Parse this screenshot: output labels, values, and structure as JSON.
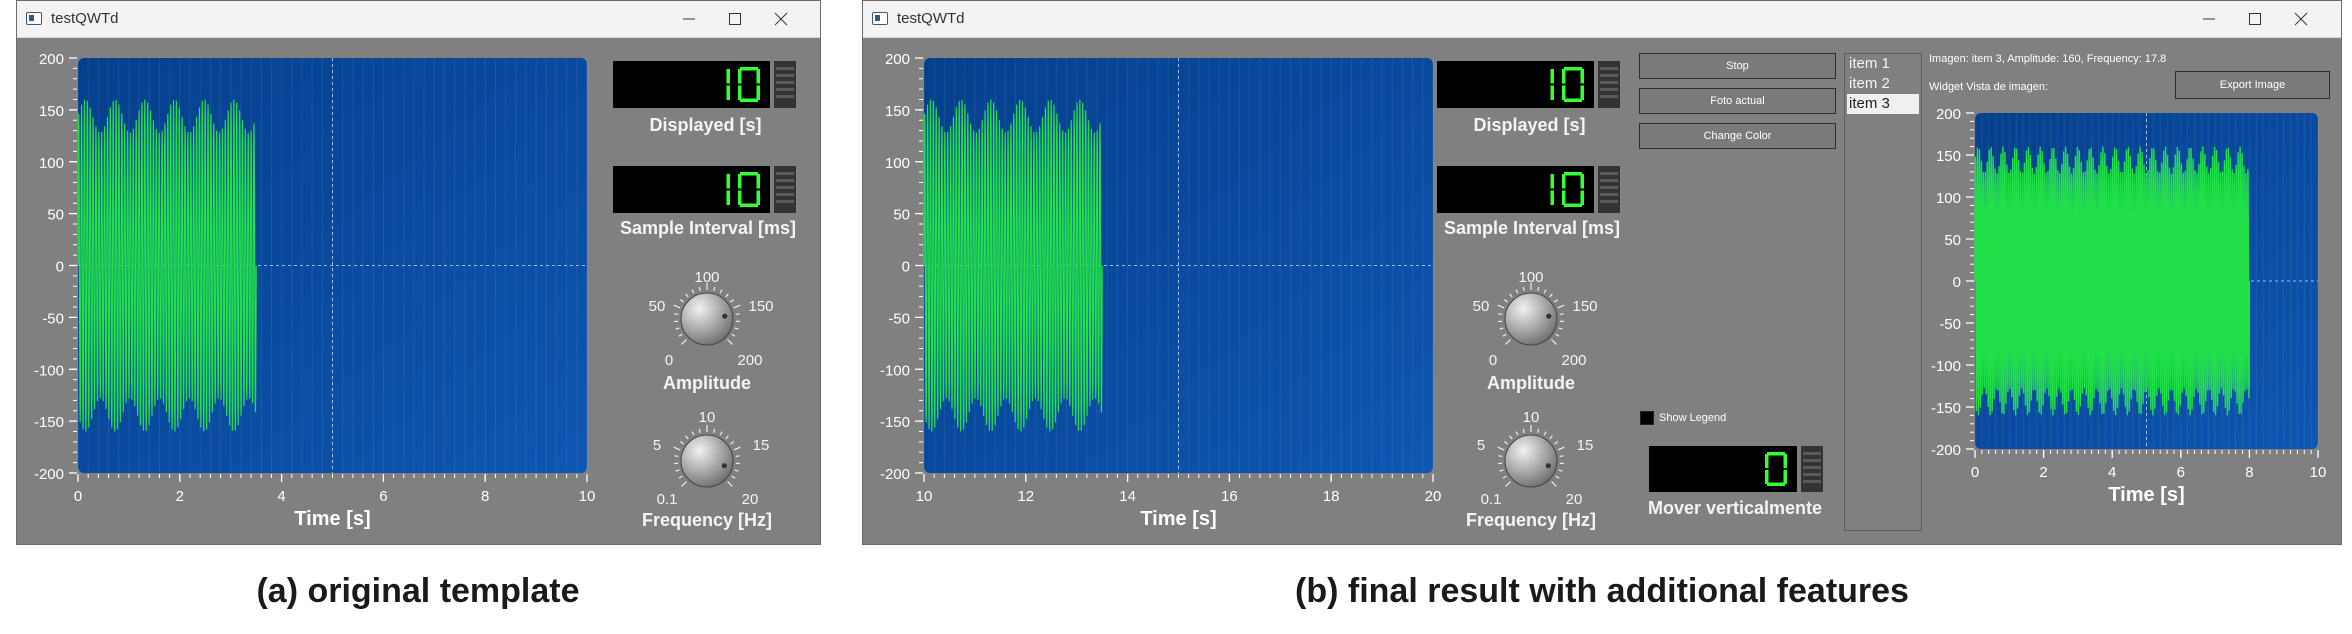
{
  "colors": {
    "plot_bg": "#0a4ea3",
    "signal": "#22e04a",
    "window_bg": "#808080",
    "lcd_digit": "#33ff33"
  },
  "left_window": {
    "title": "testQWTd",
    "lcd_displayed": "10",
    "lcd_interval": "10",
    "displayed_label": "Displayed [s]",
    "interval_label": "Sample Interval [ms]",
    "amplitude": {
      "label": "Amplitude",
      "ticks": [
        "0",
        "50",
        "100",
        "150",
        "200"
      ],
      "value": 160
    },
    "frequency": {
      "label": "Frequency [Hz]",
      "ticks": [
        "0.1",
        "5",
        "10",
        "15",
        "20"
      ],
      "value": 17.8
    }
  },
  "right_window": {
    "title": "testQWTd",
    "lcd_displayed": "10",
    "lcd_interval": "10",
    "displayed_label": "Displayed [s]",
    "interval_label": "Sample Interval [ms]",
    "amplitude": {
      "label": "Amplitude",
      "ticks": [
        "0",
        "50",
        "100",
        "150",
        "200"
      ],
      "value": 160
    },
    "frequency": {
      "label": "Frequency [Hz]",
      "ticks": [
        "0.1",
        "5",
        "10",
        "15",
        "20"
      ],
      "value": 17.8
    },
    "buttons": {
      "stop": "Stop",
      "foto": "Foto actual",
      "change_color": "Change Color",
      "export": "Export Image"
    },
    "show_legend": "Show Legend",
    "lcd_vertical": "0",
    "vertical_label": "Mover verticalmente",
    "list_items": [
      "item 1",
      "item 2",
      "item 3"
    ],
    "selected_item": "item 3",
    "image_info": "Imagen: item 3, Amplitude: 160, Frequency: 17.8",
    "widget_label": "Widget Vista de imagen:"
  },
  "captions": {
    "left": "(a) original template",
    "right": "(b) final result with additional features"
  },
  "chart_data": [
    {
      "type": "line",
      "title": "",
      "xlabel": "Time [s]",
      "ylabel": "",
      "xlim": [
        0,
        10
      ],
      "ylim": [
        -200,
        200
      ],
      "x_ticks": [
        "0",
        "2",
        "4",
        "6",
        "8",
        "10"
      ],
      "y_ticks": [
        "200",
        "150",
        "100",
        "50",
        "0",
        "-50",
        "-100",
        "-150",
        "-200"
      ],
      "grid": true,
      "series": [
        {
          "amplitude": 160,
          "frequency_hz": 17.8,
          "x_start": 0,
          "x_end": 3.5,
          "y_min": -160,
          "y_max": 160
        }
      ]
    },
    {
      "type": "line",
      "title": "",
      "xlabel": "Time [s]",
      "ylabel": "",
      "xlim": [
        10,
        20
      ],
      "ylim": [
        -200,
        200
      ],
      "x_ticks": [
        "10",
        "12",
        "14",
        "16",
        "18",
        "20"
      ],
      "y_ticks": [
        "200",
        "150",
        "100",
        "50",
        "0",
        "-50",
        "-100",
        "-150",
        "-200"
      ],
      "grid": true,
      "series": [
        {
          "amplitude": 160,
          "frequency_hz": 17.8,
          "x_start": 10,
          "x_end": 13.5,
          "y_min": -160,
          "y_max": 160
        }
      ]
    },
    {
      "type": "line",
      "title": "",
      "xlabel": "Time [s]",
      "ylabel": "",
      "xlim": [
        0,
        10
      ],
      "ylim": [
        -200,
        200
      ],
      "x_ticks": [
        "0",
        "2",
        "4",
        "6",
        "8",
        "10"
      ],
      "y_ticks": [
        "200",
        "150",
        "100",
        "50",
        "0",
        "-50",
        "-100",
        "-150",
        "-200"
      ],
      "grid": true,
      "series": [
        {
          "amplitude": 160,
          "frequency_hz": 17.8,
          "x_start": 0,
          "x_end": 8,
          "y_min": -160,
          "y_max": 160
        }
      ]
    }
  ]
}
